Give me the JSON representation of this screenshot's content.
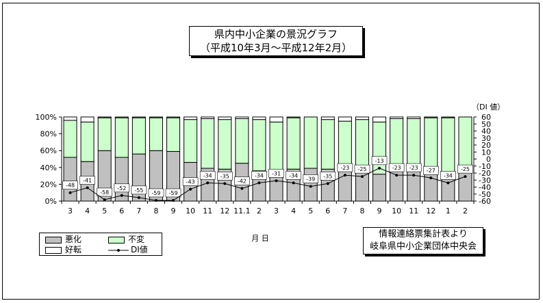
{
  "title": {
    "line1": "県内中小企業の景況グラフ",
    "line2": "（平成10年3月～平成12年2月）"
  },
  "colors": {
    "worse": "#c0c0c0",
    "unchanged": "#ccffcc",
    "better": "#ffffff",
    "di_line": "#000000"
  },
  "legend": {
    "worse": "悪化",
    "unchanged": "不変",
    "better": "好転",
    "di": "DI値"
  },
  "xaxis_title": "月 日",
  "source": {
    "line1": "情報連絡票集計表より",
    "line2": "岐阜県中小企業団体中央会"
  },
  "chart_data": {
    "type": "bar",
    "stacked": true,
    "categories": [
      "3",
      "4",
      "5",
      "6",
      "7",
      "8",
      "9",
      "10",
      "11",
      "12",
      "11.1",
      "2",
      "3",
      "4",
      "5",
      "6",
      "7",
      "8",
      "9",
      "10",
      "11",
      "12",
      "1",
      "2"
    ],
    "series": [
      {
        "name": "悪化",
        "values": [
          52,
          47,
          60,
          52,
          56,
          60,
          59,
          46,
          39,
          38,
          45,
          36,
          36,
          38,
          39,
          38,
          37,
          34,
          32,
          36,
          37,
          35,
          34,
          38
        ]
      },
      {
        "name": "不変",
        "values": [
          44,
          47,
          39,
          47,
          43,
          39,
          40,
          51,
          59,
          59,
          53,
          61,
          58,
          61,
          61,
          59,
          58,
          63,
          62,
          62,
          61,
          64,
          65,
          62
        ]
      },
      {
        "name": "好転",
        "values": [
          4,
          6,
          1,
          1,
          1,
          1,
          1,
          3,
          2,
          3,
          2,
          3,
          6,
          1,
          0,
          3,
          5,
          3,
          6,
          2,
          2,
          1,
          1,
          0
        ]
      },
      {
        "name": "DI値",
        "axis": "right",
        "values": [
          -48,
          -41,
          -58,
          -52,
          -55,
          -59,
          -59,
          -43,
          -34,
          -35,
          -42,
          -34,
          -31,
          -34,
          -39,
          -35,
          -23,
          -25,
          -13,
          -23,
          -23,
          -27,
          -34,
          -25
        ]
      }
    ],
    "yticks_left": [
      "0%",
      "20%",
      "40%",
      "60%",
      "80%",
      "100%"
    ],
    "yticks_right": [
      "-60",
      "-50",
      "-40",
      "-30",
      "-20",
      "-10",
      "0",
      "10",
      "20",
      "30",
      "40",
      "50",
      "60"
    ],
    "ylim_left": [
      0,
      100
    ],
    "ylim_right": [
      -60,
      60
    ],
    "y2label": "（DI 値）",
    "legend_position": "bottom-left",
    "grid": false
  }
}
